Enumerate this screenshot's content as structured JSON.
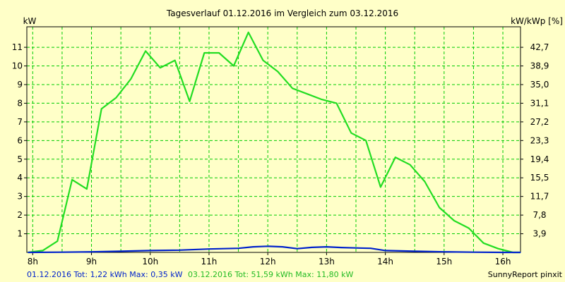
{
  "chart_data": {
    "type": "line",
    "title": "Tagesverlauf 01.12.2016 im Vergleich zum 03.12.2016",
    "ylabel": "kW",
    "ylabel_right": "kW/kWp [%]",
    "ylim": [
      0,
      12.1
    ],
    "y_ticks": [
      "1",
      "2",
      "3",
      "4",
      "5",
      "6",
      "7",
      "8",
      "9",
      "10",
      "11"
    ],
    "y_tick_values": [
      1,
      2,
      3,
      4,
      5,
      6,
      7,
      8,
      9,
      10,
      11
    ],
    "y2_ticks": [
      "3,9",
      "7,8",
      "11,7",
      "15,5",
      "19,4",
      "23,3",
      "27,2",
      "31,1",
      "35,0",
      "38,9",
      "42,7"
    ],
    "xlim": [
      7.9,
      16.3
    ],
    "x_ticks": [
      "8h",
      "9h",
      "10h",
      "11h",
      "12h",
      "13h",
      "14h",
      "15h",
      "16h"
    ],
    "x_tick_values": [
      8,
      9,
      10,
      11,
      12,
      13,
      14,
      15,
      16
    ],
    "grid": true,
    "series": [
      {
        "name": "03.12.2016",
        "color": "#22dd22",
        "x": [
          7.92,
          8.17,
          8.42,
          8.67,
          8.92,
          9.17,
          9.42,
          9.67,
          9.92,
          10.17,
          10.42,
          10.67,
          10.92,
          11.17,
          11.42,
          11.67,
          11.92,
          12.17,
          12.42,
          12.67,
          12.92,
          13.17,
          13.42,
          13.67,
          13.92,
          14.17,
          14.42,
          14.67,
          14.92,
          15.17,
          15.42,
          15.67,
          15.92,
          16.17,
          16.3
        ],
        "values": [
          0,
          0.1,
          0.6,
          3.9,
          3.4,
          7.7,
          8.3,
          9.3,
          10.8,
          9.9,
          10.3,
          8.1,
          10.7,
          10.7,
          10.0,
          11.8,
          10.3,
          9.7,
          8.8,
          8.5,
          8.2,
          8.0,
          6.4,
          6.0,
          3.5,
          5.1,
          4.7,
          3.8,
          2.4,
          1.7,
          1.3,
          0.5,
          0.2,
          0.0,
          0.0
        ],
        "footer": "03.12.2016 Tot: 51,59 kWh Max: 11,80 kW"
      },
      {
        "name": "01.12.2016",
        "color": "#0022cc",
        "x": [
          7.92,
          8.5,
          9.0,
          9.5,
          10.0,
          10.5,
          11.0,
          11.5,
          11.75,
          12.0,
          12.25,
          12.5,
          12.75,
          13.0,
          13.25,
          13.5,
          13.75,
          14.0,
          14.5,
          15.0,
          15.5,
          16.0,
          16.3
        ],
        "values": [
          0,
          0.01,
          0.03,
          0.06,
          0.1,
          0.12,
          0.18,
          0.22,
          0.3,
          0.33,
          0.3,
          0.2,
          0.27,
          0.3,
          0.26,
          0.24,
          0.22,
          0.1,
          0.06,
          0.03,
          0.01,
          0.0,
          0.0
        ],
        "footer": "01.12.2016 Tot: 1,22 kWh Max: 0,35 kW"
      }
    ]
  },
  "footer": {
    "credit": "SunnyReport pinxit"
  },
  "colors": {
    "background": "#ffffc8",
    "grid": "#00cc00",
    "axis": "#000000"
  }
}
